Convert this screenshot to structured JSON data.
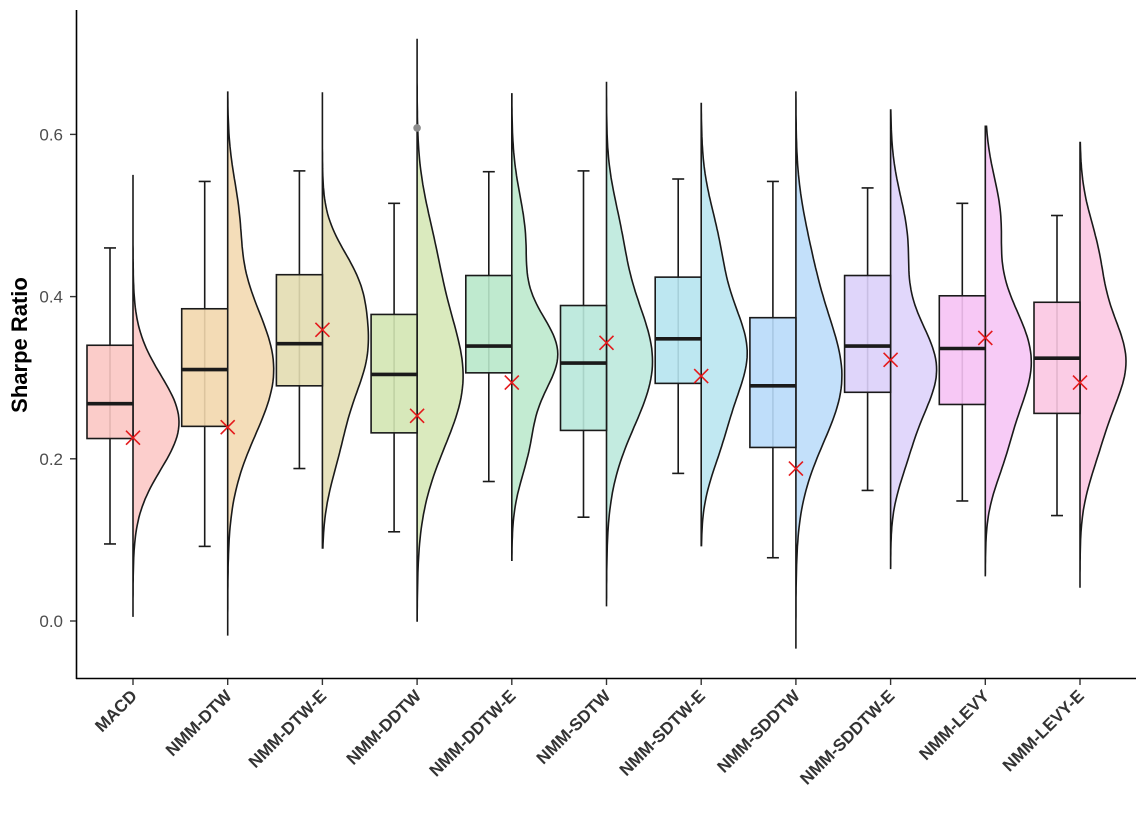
{
  "chart_data": {
    "type": "raincloud",
    "title": "",
    "xlabel": "",
    "ylabel": "Sharpe Ratio",
    "ylim": [
      -0.07,
      0.75
    ],
    "y_ticks": [
      0.0,
      0.2,
      0.4,
      0.6
    ],
    "y_tick_labels": [
      "0.0",
      "0.2",
      "0.4",
      "0.6"
    ],
    "grid": false,
    "legend": "none",
    "mean_marker_color": "#e41a1c",
    "categories": [
      "MACD",
      "NMM-DTW",
      "NMM-DTW-E",
      "NMM-DDTW",
      "NMM-DDTW-E",
      "NMM-SDTW",
      "NMM-SDTW-E",
      "NMM-SDDTW",
      "NMM-SDDTW-E",
      "NMM-LEVY",
      "NMM-LEVY-E"
    ],
    "colors": [
      "#fbc6c3",
      "#f2d7ad",
      "#e3ddb1",
      "#d3e6b3",
      "#b8e8ca",
      "#b8e8da",
      "#b6e4f0",
      "#b8daf9",
      "#dcd0fa",
      "#f6c2f4",
      "#fbc6e2"
    ],
    "boxplots": [
      {
        "whisker_low": 0.095,
        "q1": 0.225,
        "median": 0.268,
        "q3": 0.34,
        "whisker_high": 0.46
      },
      {
        "whisker_low": 0.092,
        "q1": 0.24,
        "median": 0.31,
        "q3": 0.385,
        "whisker_high": 0.542
      },
      {
        "whisker_low": 0.188,
        "q1": 0.29,
        "median": 0.342,
        "q3": 0.427,
        "whisker_high": 0.555
      },
      {
        "whisker_low": 0.11,
        "q1": 0.232,
        "median": 0.304,
        "q3": 0.378,
        "whisker_high": 0.515
      },
      {
        "whisker_low": 0.172,
        "q1": 0.306,
        "median": 0.339,
        "q3": 0.426,
        "whisker_high": 0.554
      },
      {
        "whisker_low": 0.128,
        "q1": 0.235,
        "median": 0.318,
        "q3": 0.389,
        "whisker_high": 0.555
      },
      {
        "whisker_low": 0.182,
        "q1": 0.293,
        "median": 0.348,
        "q3": 0.424,
        "whisker_high": 0.545
      },
      {
        "whisker_low": 0.078,
        "q1": 0.214,
        "median": 0.29,
        "q3": 0.374,
        "whisker_high": 0.542
      },
      {
        "whisker_low": 0.161,
        "q1": 0.282,
        "median": 0.339,
        "q3": 0.426,
        "whisker_high": 0.534
      },
      {
        "whisker_low": 0.148,
        "q1": 0.267,
        "median": 0.336,
        "q3": 0.401,
        "whisker_high": 0.515
      },
      {
        "whisker_low": 0.13,
        "q1": 0.256,
        "median": 0.324,
        "q3": 0.393,
        "whisker_high": 0.5
      }
    ],
    "means": [
      0.226,
      0.239,
      0.359,
      0.253,
      0.294,
      0.343,
      0.302,
      0.188,
      0.322,
      0.349,
      0.294
    ],
    "outliers": [
      {
        "category": "NMM-DDTW",
        "y": 0.608
      }
    ],
    "density_ranges": [
      [
        0.005,
        0.55
      ],
      [
        -0.018,
        0.652
      ],
      [
        0.09,
        0.652
      ],
      [
        0.0,
        0.718
      ],
      [
        0.075,
        0.65
      ],
      [
        0.018,
        0.665
      ],
      [
        0.093,
        0.638
      ],
      [
        -0.034,
        0.653
      ],
      [
        0.064,
        0.63
      ],
      [
        0.055,
        0.61
      ],
      [
        0.041,
        0.59
      ]
    ],
    "density_modes": [
      [
        {
          "mu": 0.245,
          "s": 0.058,
          "w": 1.0
        }
      ],
      [
        {
          "mu": 0.31,
          "s": 0.08,
          "w": 1.0
        },
        {
          "mu": 0.5,
          "s": 0.05,
          "w": 0.2
        }
      ],
      [
        {
          "mu": 0.33,
          "s": 0.055,
          "w": 0.85
        },
        {
          "mu": 0.42,
          "s": 0.045,
          "w": 0.55
        },
        {
          "mu": 0.22,
          "s": 0.05,
          "w": 0.3
        }
      ],
      [
        {
          "mu": 0.3,
          "s": 0.085,
          "w": 1.0
        },
        {
          "mu": 0.46,
          "s": 0.06,
          "w": 0.25
        }
      ],
      [
        {
          "mu": 0.33,
          "s": 0.048,
          "w": 1.0
        },
        {
          "mu": 0.47,
          "s": 0.055,
          "w": 0.3
        },
        {
          "mu": 0.22,
          "s": 0.045,
          "w": 0.35
        }
      ],
      [
        {
          "mu": 0.32,
          "s": 0.08,
          "w": 1.0
        },
        {
          "mu": 0.48,
          "s": 0.05,
          "w": 0.2
        }
      ],
      [
        {
          "mu": 0.33,
          "s": 0.06,
          "w": 1.0
        },
        {
          "mu": 0.46,
          "s": 0.055,
          "w": 0.35
        },
        {
          "mu": 0.22,
          "s": 0.045,
          "w": 0.3
        }
      ],
      [
        {
          "mu": 0.3,
          "s": 0.08,
          "w": 1.0
        },
        {
          "mu": 0.45,
          "s": 0.06,
          "w": 0.2
        }
      ],
      [
        {
          "mu": 0.31,
          "s": 0.06,
          "w": 1.0
        },
        {
          "mu": 0.47,
          "s": 0.055,
          "w": 0.35
        },
        {
          "mu": 0.2,
          "s": 0.04,
          "w": 0.2
        }
      ],
      [
        {
          "mu": 0.32,
          "s": 0.07,
          "w": 1.0
        },
        {
          "mu": 0.5,
          "s": 0.05,
          "w": 0.3
        },
        {
          "mu": 0.2,
          "s": 0.04,
          "w": 0.2
        }
      ],
      [
        {
          "mu": 0.32,
          "s": 0.06,
          "w": 1.0
        },
        {
          "mu": 0.45,
          "s": 0.05,
          "w": 0.35
        },
        {
          "mu": 0.21,
          "s": 0.045,
          "w": 0.25
        }
      ]
    ]
  }
}
